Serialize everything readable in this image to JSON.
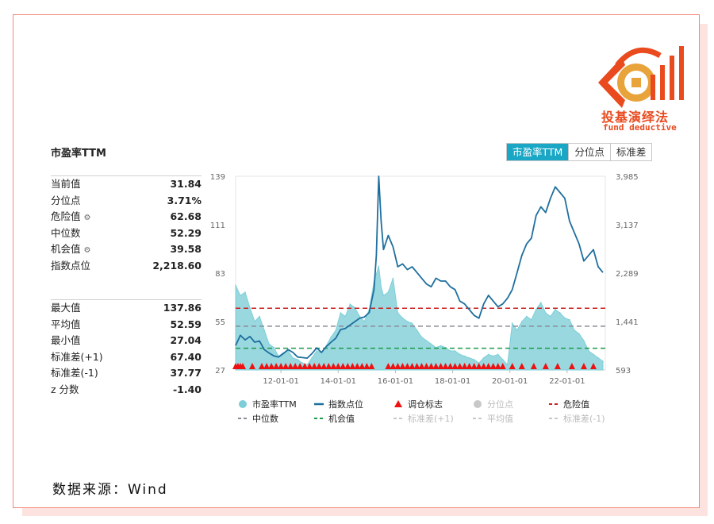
{
  "brand": {
    "name_cn": "投基演绎法",
    "name_en": "fund deductive",
    "accent": "#e94a1e"
  },
  "tabs": [
    {
      "label": "市盈率TTM",
      "active": true
    },
    {
      "label": "分位点",
      "active": false
    },
    {
      "label": "标准差",
      "active": false
    }
  ],
  "stats_top": [
    {
      "label": "当前值",
      "value": "31.84",
      "gear": false
    },
    {
      "label": "分位点",
      "value": "3.71%",
      "gear": false
    },
    {
      "label": "危险值",
      "value": "62.68",
      "gear": true
    },
    {
      "label": "中位数",
      "value": "52.29",
      "gear": false
    },
    {
      "label": "机会值",
      "value": "39.58",
      "gear": true
    },
    {
      "label": "指数点位",
      "value": "2,218.60",
      "gear": false
    }
  ],
  "stats_bottom": [
    {
      "label": "最大值",
      "value": "137.86"
    },
    {
      "label": "平均值",
      "value": "52.59"
    },
    {
      "label": "最小值",
      "value": "27.04"
    },
    {
      "label": "标准差(+1)",
      "value": "67.40"
    },
    {
      "label": "标准差(-1)",
      "value": "37.77"
    },
    {
      "label": "z 分数",
      "value": "-1.40"
    }
  ],
  "source": "数据来源：Wind",
  "chart_data": {
    "type": "area",
    "title": "市盈率TTM",
    "x_tick_labels": [
      "12-01-01",
      "14-01-01",
      "16-01-01",
      "18-01-01",
      "20-01-01",
      "22-01-01"
    ],
    "x_tick_dates": [
      "2012-01-01",
      "2014-01-01",
      "2016-01-01",
      "2018-01-01",
      "2020-01-01",
      "2022-01-01"
    ],
    "x_range": [
      "2010-06-01",
      "2023-05-01"
    ],
    "y_left": {
      "ticks": [
        "139",
        "111",
        "83",
        "55",
        "27"
      ],
      "ylim": [
        27,
        139
      ]
    },
    "y_right": {
      "ticks": [
        "3,985",
        "3,137",
        "2,289",
        "1,441",
        "593"
      ],
      "ylim": [
        593,
        3985
      ]
    },
    "grid": false,
    "colors": {
      "pe": "#7ccfd8",
      "pe_fill": "#8fd4dd",
      "index": "#1e6f9e",
      "marker": "#ee1111",
      "danger": "#cc1f1f",
      "median": "#8a8a98",
      "opportunity": "#1c9b4a",
      "disabled": "#c8c8c8"
    },
    "reference_lines": [
      {
        "name": "危险值",
        "value": 62.68,
        "axis": "left",
        "style": "dashed",
        "color": "#cc1f1f"
      },
      {
        "name": "中位数",
        "value": 52.29,
        "axis": "left",
        "style": "dashed",
        "color": "#8a8a98"
      },
      {
        "name": "机会值",
        "value": 39.58,
        "axis": "left",
        "style": "dashed",
        "color": "#1c9b4a"
      }
    ],
    "series": [
      {
        "name": "市盈率TTM",
        "axis": "left",
        "kind": "area",
        "x": [
          "2010-06",
          "2010-08",
          "2010-10",
          "2010-12",
          "2011-02",
          "2011-04",
          "2011-06",
          "2011-08",
          "2011-10",
          "2011-12",
          "2012-02",
          "2012-04",
          "2012-06",
          "2012-08",
          "2012-10",
          "2012-12",
          "2013-02",
          "2013-04",
          "2013-06",
          "2013-08",
          "2013-10",
          "2013-12",
          "2014-02",
          "2014-04",
          "2014-06",
          "2014-08",
          "2014-10",
          "2014-12",
          "2015-02",
          "2015-04",
          "2015-06",
          "2015-07",
          "2015-08",
          "2015-10",
          "2015-12",
          "2016-02",
          "2016-04",
          "2016-06",
          "2016-08",
          "2016-10",
          "2016-12",
          "2017-02",
          "2017-04",
          "2017-06",
          "2017-08",
          "2017-10",
          "2017-12",
          "2018-02",
          "2018-04",
          "2018-06",
          "2018-08",
          "2018-10",
          "2018-12",
          "2019-02",
          "2019-04",
          "2019-06",
          "2019-08",
          "2019-10",
          "2019-12",
          "2020-02",
          "2020-04",
          "2020-06",
          "2020-08",
          "2020-10",
          "2020-12",
          "2021-02",
          "2021-04",
          "2021-06",
          "2021-08",
          "2021-10",
          "2021-12",
          "2022-02",
          "2022-04",
          "2022-06",
          "2022-08",
          "2022-10",
          "2022-12",
          "2023-02",
          "2023-04"
        ],
        "y": [
          76,
          70,
          72,
          63,
          55,
          58,
          50,
          42,
          40,
          35,
          37,
          38,
          34,
          33,
          31,
          30,
          34,
          38,
          37,
          41,
          46,
          50,
          60,
          58,
          65,
          63,
          58,
          55,
          62,
          78,
          87,
          75,
          70,
          72,
          80,
          60,
          57,
          55,
          54,
          50,
          46,
          44,
          42,
          40,
          41,
          40,
          38,
          38,
          36,
          35,
          34,
          33,
          31,
          34,
          36,
          35,
          36,
          33,
          30,
          54,
          50,
          55,
          58,
          56,
          62,
          66,
          60,
          58,
          62,
          60,
          57,
          56,
          50,
          48,
          44,
          38,
          36,
          34,
          32
        ]
      },
      {
        "name": "指数点位",
        "axis": "right",
        "kind": "line",
        "x": [
          "2010-06",
          "2010-08",
          "2010-10",
          "2010-12",
          "2011-02",
          "2011-04",
          "2011-06",
          "2011-08",
          "2011-10",
          "2011-12",
          "2012-02",
          "2012-04",
          "2012-06",
          "2012-08",
          "2012-10",
          "2012-12",
          "2013-02",
          "2013-04",
          "2013-06",
          "2013-08",
          "2013-10",
          "2013-12",
          "2014-02",
          "2014-04",
          "2014-06",
          "2014-08",
          "2014-10",
          "2014-12",
          "2015-02",
          "2015-04",
          "2015-05",
          "2015-06",
          "2015-07",
          "2015-08",
          "2015-10",
          "2015-12",
          "2016-02",
          "2016-04",
          "2016-06",
          "2016-08",
          "2016-10",
          "2016-12",
          "2017-02",
          "2017-04",
          "2017-06",
          "2017-08",
          "2017-10",
          "2017-12",
          "2018-02",
          "2018-04",
          "2018-06",
          "2018-08",
          "2018-10",
          "2018-12",
          "2019-02",
          "2019-04",
          "2019-06",
          "2019-08",
          "2019-10",
          "2019-12",
          "2020-02",
          "2020-04",
          "2020-06",
          "2020-08",
          "2020-10",
          "2020-12",
          "2021-02",
          "2021-04",
          "2021-06",
          "2021-08",
          "2021-10",
          "2021-12",
          "2022-02",
          "2022-04",
          "2022-06",
          "2022-08",
          "2022-10",
          "2022-12",
          "2023-02",
          "2023-04"
        ],
        "y": [
          1020,
          1200,
          1120,
          1180,
          1080,
          1100,
          950,
          890,
          840,
          820,
          880,
          950,
          900,
          820,
          810,
          800,
          880,
          980,
          900,
          1000,
          1080,
          1150,
          1300,
          1320,
          1380,
          1440,
          1500,
          1520,
          1600,
          2000,
          2600,
          3985,
          3200,
          2700,
          2950,
          2750,
          2400,
          2450,
          2350,
          2400,
          2300,
          2200,
          2100,
          2050,
          2200,
          2150,
          2150,
          2050,
          2000,
          1800,
          1750,
          1650,
          1550,
          1500,
          1750,
          1900,
          1800,
          1700,
          1750,
          1850,
          2000,
          2300,
          2600,
          2800,
          2900,
          3300,
          3450,
          3350,
          3600,
          3800,
          3700,
          3600,
          3200,
          3000,
          2800,
          2500,
          2600,
          2700,
          2400,
          2300
        ]
      },
      {
        "name": "调仓标志",
        "axis": "left",
        "kind": "marker",
        "x": [
          "2010-06",
          "2010-07",
          "2010-08",
          "2010-09",
          "2011-01",
          "2011-05",
          "2011-07",
          "2011-09",
          "2011-11",
          "2012-01",
          "2012-03",
          "2012-05",
          "2012-07",
          "2012-09",
          "2012-11",
          "2013-01",
          "2013-03",
          "2013-05",
          "2013-07",
          "2013-09",
          "2013-11",
          "2014-01",
          "2014-03",
          "2014-05",
          "2014-07",
          "2014-09",
          "2014-11",
          "2015-01",
          "2015-03",
          "2015-10",
          "2015-12",
          "2016-02",
          "2016-04",
          "2016-06",
          "2016-08",
          "2016-10",
          "2016-12",
          "2017-02",
          "2017-04",
          "2017-06",
          "2017-08",
          "2017-10",
          "2017-12",
          "2018-02",
          "2018-04",
          "2018-06",
          "2018-08",
          "2018-10",
          "2018-12",
          "2019-02",
          "2019-04",
          "2019-06",
          "2019-08",
          "2019-10",
          "2020-02",
          "2020-06",
          "2020-11",
          "2021-04",
          "2021-09",
          "2022-03",
          "2022-08",
          "2022-12"
        ]
      }
    ],
    "legend": {
      "placement": "bottom",
      "items": [
        {
          "name": "市盈率TTM",
          "symbol": "circle",
          "color": "#7ccfd8",
          "enabled": true
        },
        {
          "name": "指数点位",
          "symbol": "line",
          "color": "#1e6f9e",
          "enabled": true
        },
        {
          "name": "调仓标志",
          "symbol": "triangle",
          "color": "#ee1111",
          "enabled": true
        },
        {
          "name": "分位点",
          "symbol": "circle",
          "color": "#c8c8c8",
          "enabled": false
        },
        {
          "name": "危险值",
          "symbol": "dash",
          "color": "#cc1f1f",
          "enabled": true
        },
        {
          "name": "中位数",
          "symbol": "dash",
          "color": "#8a8a98",
          "enabled": true
        },
        {
          "name": "机会值",
          "symbol": "dash",
          "color": "#1c9b4a",
          "enabled": true
        },
        {
          "name": "标准差(+1)",
          "symbol": "dash",
          "color": "#c8c8c8",
          "enabled": false
        },
        {
          "name": "平均值",
          "symbol": "dash",
          "color": "#c8c8c8",
          "enabled": false
        },
        {
          "name": "标准差(-1)",
          "symbol": "dash",
          "color": "#c8c8c8",
          "enabled": false
        }
      ]
    }
  }
}
